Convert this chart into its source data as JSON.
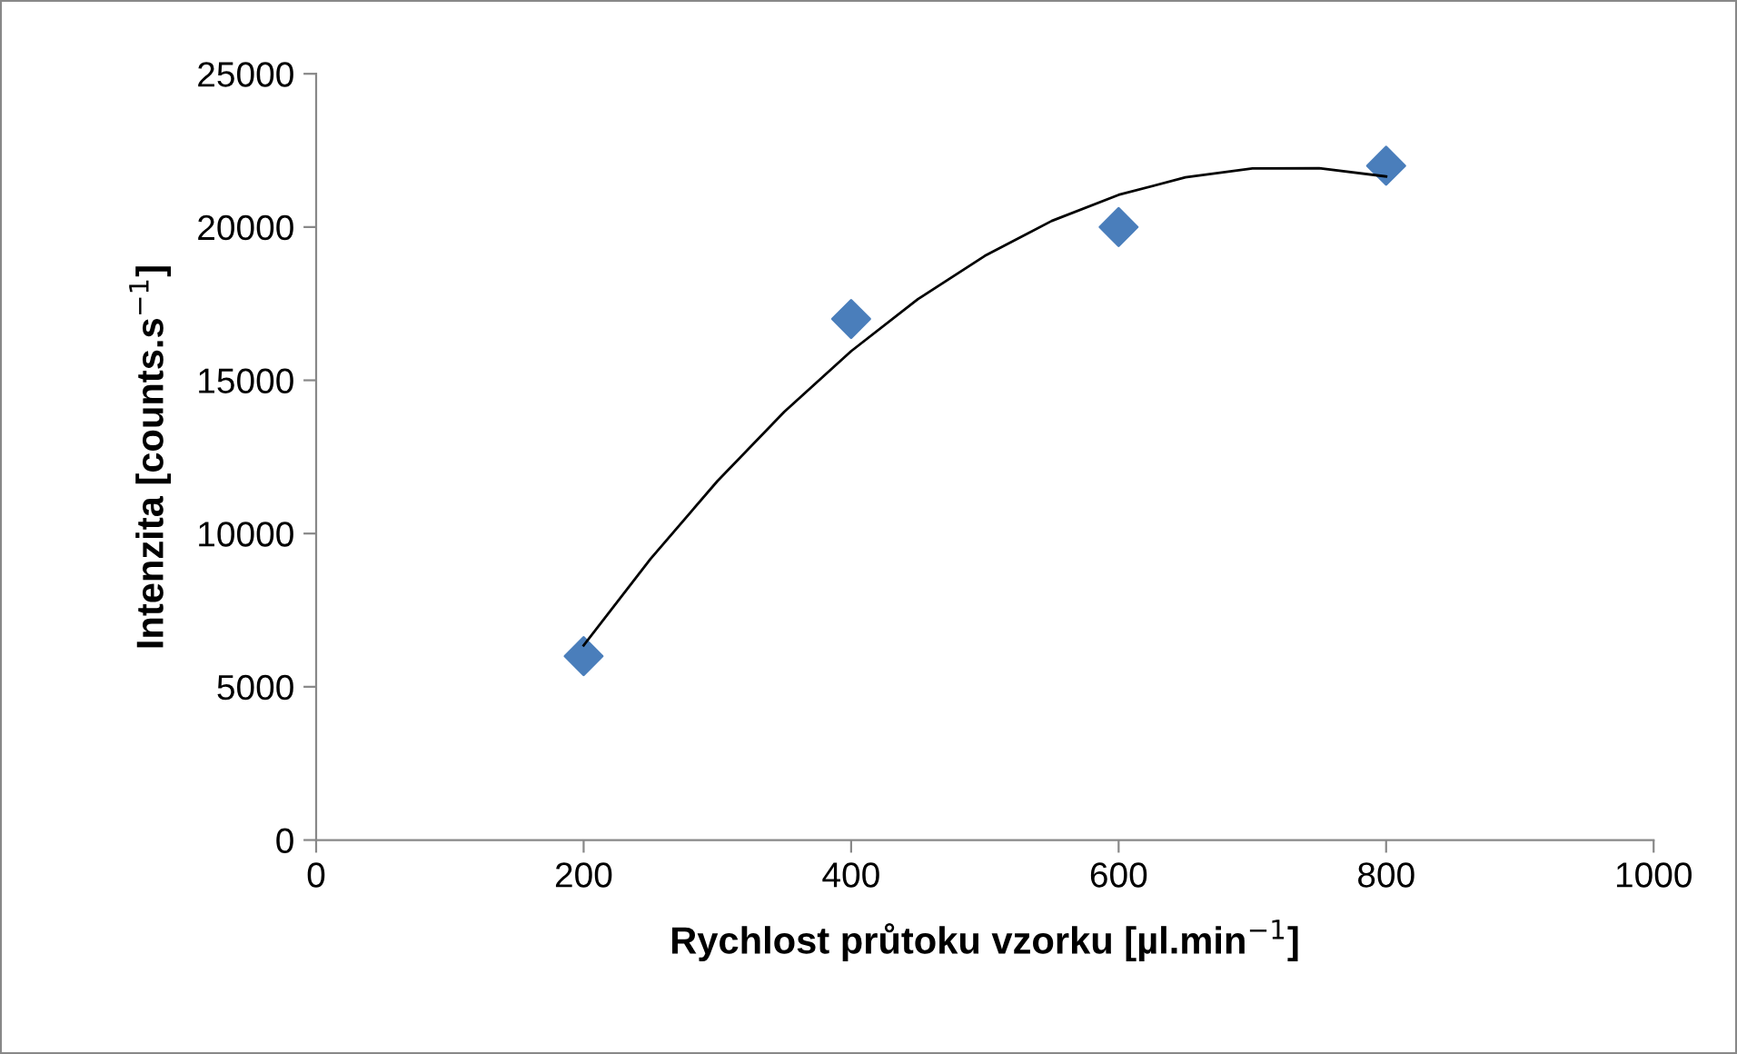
{
  "chart_data": {
    "type": "scatter",
    "xlabel": "Rychlost průtoku vzorku [µl.min$^{−1}$]",
    "ylabel": "Intenzita [counts.s$^{−1}$]",
    "xlim": [
      0,
      1000
    ],
    "xticks": [
      0,
      200,
      400,
      600,
      800,
      1000
    ],
    "ylim": [
      0,
      25000
    ],
    "yticks": [
      0,
      5000,
      10000,
      15000,
      20000,
      25000
    ],
    "grid": false,
    "legend": false,
    "series": [
      {
        "type": "line",
        "color": "#000000",
        "marker": "none",
        "line_style": "solid",
        "x": [
          200,
          250,
          300,
          350,
          400,
          450,
          500,
          550,
          600,
          650,
          700,
          750,
          800
        ],
        "values": [
          6350,
          9170,
          11710,
          13970,
          15950,
          17650,
          19060,
          20200,
          21050,
          21620,
          21910,
          21920,
          21650
        ]
      },
      {
        "color": "#4a7ebb",
        "marker": "diamond",
        "x": [
          200,
          400,
          600,
          800
        ],
        "values": [
          6000,
          17000,
          20000,
          22000
        ]
      }
    ]
  }
}
